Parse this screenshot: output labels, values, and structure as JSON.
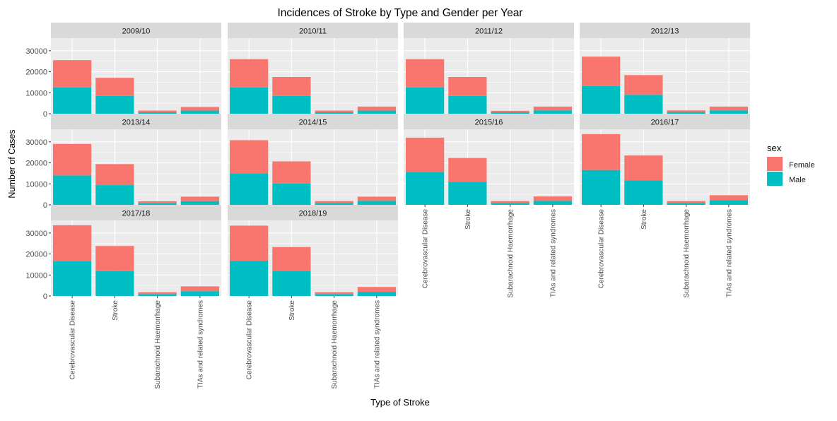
{
  "chart_data": {
    "type": "bar",
    "stacked": true,
    "faceted": true,
    "title": "Incidences of Stroke by Type and Gender per Year",
    "xlabel": "Type of Stroke",
    "ylabel": "Number of Cases",
    "ylim": [
      0,
      36000
    ],
    "yticks": [
      0,
      10000,
      20000,
      30000
    ],
    "ytick_labels": [
      "0",
      "10000",
      "20000",
      "30000"
    ],
    "grid": true,
    "legend": {
      "title": "sex",
      "position": "right"
    },
    "categories": [
      "Cerebrovascular Disease",
      "Stroke",
      "Subarachnoid Haemorrhage",
      "TIAs and related syndromes"
    ],
    "series_order": [
      "Female",
      "Male"
    ],
    "colors": {
      "Female": "#F8766D",
      "Male": "#00BFC4"
    },
    "panels": [
      {
        "label": "2009/10",
        "male": [
          12500,
          8500,
          700,
          1500
        ],
        "female": [
          13000,
          8600,
          800,
          1700
        ]
      },
      {
        "label": "2010/11",
        "male": [
          12500,
          8500,
          700,
          1500
        ],
        "female": [
          13500,
          9000,
          800,
          1900
        ]
      },
      {
        "label": "2011/12",
        "male": [
          12500,
          8500,
          700,
          1600
        ],
        "female": [
          13500,
          9000,
          700,
          1800
        ]
      },
      {
        "label": "2012/13",
        "male": [
          13200,
          9000,
          800,
          1600
        ],
        "female": [
          14000,
          9400,
          800,
          1800
        ]
      },
      {
        "label": "2013/14",
        "male": [
          14000,
          9400,
          800,
          1800
        ],
        "female": [
          15000,
          10000,
          900,
          2100
        ]
      },
      {
        "label": "2014/15",
        "male": [
          15000,
          10200,
          900,
          1900
        ],
        "female": [
          15800,
          10500,
          900,
          2000
        ]
      },
      {
        "label": "2015/16",
        "male": [
          15700,
          11000,
          900,
          1900
        ],
        "female": [
          16300,
          11300,
          900,
          2100
        ]
      },
      {
        "label": "2016/17",
        "male": [
          16600,
          11600,
          900,
          2300
        ],
        "female": [
          17100,
          11900,
          900,
          2300
        ]
      },
      {
        "label": "2017/18",
        "male": [
          16500,
          11800,
          900,
          2300
        ],
        "female": [
          17200,
          12000,
          900,
          2300
        ]
      },
      {
        "label": "2018/19",
        "male": [
          16800,
          12000,
          900,
          2000
        ],
        "female": [
          16700,
          11300,
          900,
          2300
        ]
      }
    ]
  }
}
